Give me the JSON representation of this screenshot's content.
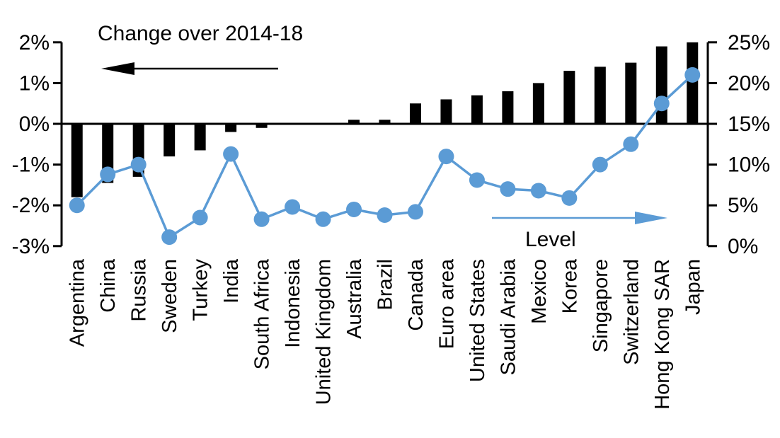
{
  "chart_data": {
    "type": "combo_bar_line",
    "title": "Change over 2014-18",
    "categories": [
      "Argentina",
      "China",
      "Russia",
      "Sweden",
      "Turkey",
      "India",
      "South Africa",
      "Indonesia",
      "United Kingdom",
      "Australia",
      "Brazil",
      "Canada",
      "Euro area",
      "United States",
      "Saudi Arabia",
      "Mexico",
      "Korea",
      "Singapore",
      "Switzerland",
      "Hong Kong SAR",
      "Japan"
    ],
    "series": [
      {
        "name": "Change over 2014-18",
        "type": "bar",
        "axis": "left",
        "color": "#000000",
        "values": [
          -1.8,
          -1.45,
          -1.3,
          -0.8,
          -0.65,
          -0.2,
          -0.1,
          0.0,
          0.0,
          0.1,
          0.1,
          0.5,
          0.6,
          0.7,
          0.8,
          1.0,
          1.3,
          1.4,
          1.5,
          1.9,
          2.0
        ]
      },
      {
        "name": "Level",
        "type": "line",
        "axis": "right",
        "color": "#5B9BD5",
        "values": [
          5.0,
          8.8,
          10.0,
          1.1,
          3.5,
          11.3,
          3.3,
          4.8,
          3.3,
          4.5,
          3.8,
          4.2,
          11.0,
          8.1,
          7.0,
          6.8,
          5.9,
          10.0,
          12.5,
          17.5,
          21.0
        ]
      }
    ],
    "left_axis": {
      "tick_labels": [
        "2%",
        "1%",
        "0%",
        "-1%",
        "-2%",
        "-3%"
      ],
      "tick_values": [
        2,
        1,
        0,
        -1,
        -2,
        -3
      ],
      "min": -3,
      "max": 2
    },
    "right_axis": {
      "tick_labels": [
        "25%",
        "20%",
        "15%",
        "10%",
        "5%",
        "0%"
      ],
      "tick_values": [
        25,
        20,
        15,
        10,
        5,
        0
      ],
      "min": 0,
      "max": 25
    },
    "annotations": {
      "bar_series_label": "Change over 2014-18",
      "line_series_label": "Level",
      "bar_arrow_direction": "left",
      "line_arrow_direction": "right"
    },
    "grid": false,
    "legend_position": "none",
    "xlabel": "",
    "ylabel": ""
  }
}
